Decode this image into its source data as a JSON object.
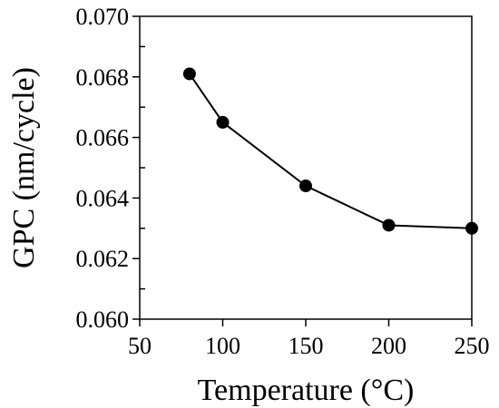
{
  "chart_data": {
    "type": "line",
    "title": "",
    "xlabel": "Temperature (°C)",
    "ylabel": "GPC (nm/cycle)",
    "xlim": [
      50,
      250
    ],
    "ylim": [
      0.06,
      0.07
    ],
    "x_ticks": [
      50,
      100,
      150,
      200,
      250
    ],
    "x_tick_labels": [
      "50",
      "100",
      "150",
      "200",
      "250"
    ],
    "y_ticks": [
      0.06,
      0.062,
      0.064,
      0.066,
      0.068,
      0.07
    ],
    "y_tick_labels": [
      "0.060",
      "0.062",
      "0.064",
      "0.066",
      "0.068",
      "0.070"
    ],
    "grid": false,
    "legend": "none",
    "series": [
      {
        "x": [
          80,
          100,
          150,
          200,
          250
        ],
        "y": [
          0.0681,
          0.0665,
          0.0644,
          0.0631,
          0.063
        ],
        "marker": "filled-circle",
        "color": "#000000"
      }
    ]
  }
}
